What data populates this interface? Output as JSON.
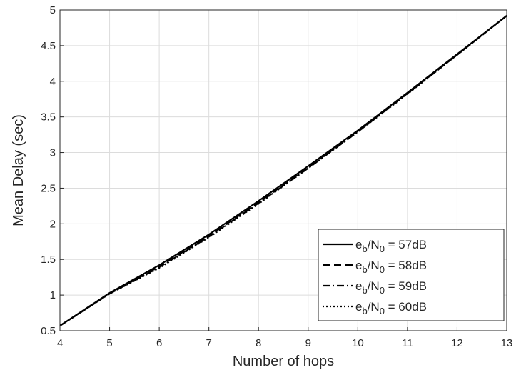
{
  "chart_data": {
    "type": "line",
    "xlabel": "Number of hops",
    "ylabel": "Mean Delay (sec)",
    "xlim": [
      4,
      13
    ],
    "ylim": [
      0.5,
      5
    ],
    "xticks": [
      "4",
      "5",
      "6",
      "7",
      "8",
      "9",
      "10",
      "11",
      "12",
      "13"
    ],
    "yticks": [
      "0.5",
      "1",
      "1.5",
      "2",
      "2.5",
      "3",
      "3.5",
      "4",
      "4.5",
      "5"
    ],
    "grid": true,
    "legend_position": "bottom-right",
    "x": [
      4,
      5,
      6,
      7,
      8,
      9,
      10,
      11,
      12,
      13
    ],
    "series": [
      {
        "name_base": "e",
        "name_sub1": "b",
        "name_mid": "/N",
        "name_sub2": "0",
        "name_tail": " = 57dB",
        "line_style": "solid",
        "values": [
          0.57,
          1.03,
          1.42,
          1.85,
          2.32,
          2.81,
          3.31,
          3.84,
          4.38,
          4.92
        ]
      },
      {
        "name_base": "e",
        "name_sub1": "b",
        "name_mid": "/N",
        "name_sub2": "0",
        "name_tail": " = 58dB",
        "line_style": "dashed",
        "values": [
          0.57,
          1.02,
          1.4,
          1.83,
          2.3,
          2.79,
          3.3,
          3.83,
          4.37,
          4.92
        ]
      },
      {
        "name_base": "e",
        "name_sub1": "b",
        "name_mid": "/N",
        "name_sub2": "0",
        "name_tail": " = 59dB",
        "line_style": "dashdot",
        "values": [
          0.57,
          1.02,
          1.39,
          1.82,
          2.29,
          2.78,
          3.29,
          3.83,
          4.37,
          4.92
        ]
      },
      {
        "name_base": "e",
        "name_sub1": "b",
        "name_mid": "/N",
        "name_sub2": "0",
        "name_tail": " = 60dB",
        "line_style": "dotted",
        "values": [
          0.57,
          1.02,
          1.38,
          1.81,
          2.28,
          2.78,
          3.29,
          3.82,
          4.37,
          4.92
        ]
      }
    ],
    "colors": {
      "line": "#000000",
      "grid": "#dcdcdc",
      "axis": "#262626"
    }
  }
}
